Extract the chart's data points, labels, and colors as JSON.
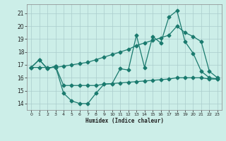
{
  "xlabel": "Humidex (Indice chaleur)",
  "background_color": "#cceee8",
  "grid_color": "#aacccc",
  "line_color": "#1a7a6e",
  "xlim": [
    -0.5,
    23.5
  ],
  "ylim": [
    13.5,
    21.7
  ],
  "x_ticks": [
    0,
    1,
    2,
    3,
    4,
    5,
    6,
    7,
    8,
    9,
    10,
    11,
    12,
    13,
    14,
    15,
    16,
    17,
    18,
    19,
    20,
    21,
    22,
    23
  ],
  "y_ticks": [
    14,
    15,
    16,
    17,
    18,
    19,
    20,
    21
  ],
  "line1_x": [
    0,
    1,
    2,
    3,
    4,
    5,
    6,
    7,
    8,
    9,
    10,
    11,
    12,
    13,
    14,
    15,
    16,
    17,
    18,
    19,
    20,
    21,
    22,
    23
  ],
  "line1_y": [
    16.8,
    17.4,
    16.7,
    16.9,
    14.8,
    14.2,
    14.0,
    14.0,
    14.8,
    15.5,
    15.55,
    16.7,
    16.6,
    19.3,
    16.8,
    19.2,
    18.7,
    20.7,
    21.2,
    18.8,
    17.9,
    16.5,
    16.0,
    15.9
  ],
  "line2_x": [
    0,
    1,
    2,
    3,
    4,
    5,
    6,
    7,
    8,
    9,
    10,
    11,
    12,
    13,
    14,
    15,
    16,
    17,
    18,
    19,
    20,
    21,
    22,
    23
  ],
  "line2_y": [
    16.8,
    17.4,
    16.7,
    16.9,
    15.4,
    15.4,
    15.4,
    15.4,
    15.4,
    15.5,
    15.55,
    15.6,
    15.65,
    15.7,
    15.75,
    15.8,
    15.85,
    15.9,
    16.0,
    16.0,
    16.0,
    16.0,
    15.9,
    15.9
  ],
  "line3_x": [
    0,
    1,
    2,
    3,
    4,
    5,
    6,
    7,
    8,
    9,
    10,
    11,
    12,
    13,
    14,
    15,
    16,
    17,
    18,
    19,
    20,
    21,
    22,
    23
  ],
  "line3_y": [
    16.8,
    16.8,
    16.8,
    16.8,
    16.9,
    17.0,
    17.1,
    17.2,
    17.4,
    17.6,
    17.8,
    18.0,
    18.2,
    18.5,
    18.7,
    18.9,
    19.1,
    19.3,
    20.0,
    19.5,
    19.2,
    18.8,
    16.5,
    16.0
  ]
}
